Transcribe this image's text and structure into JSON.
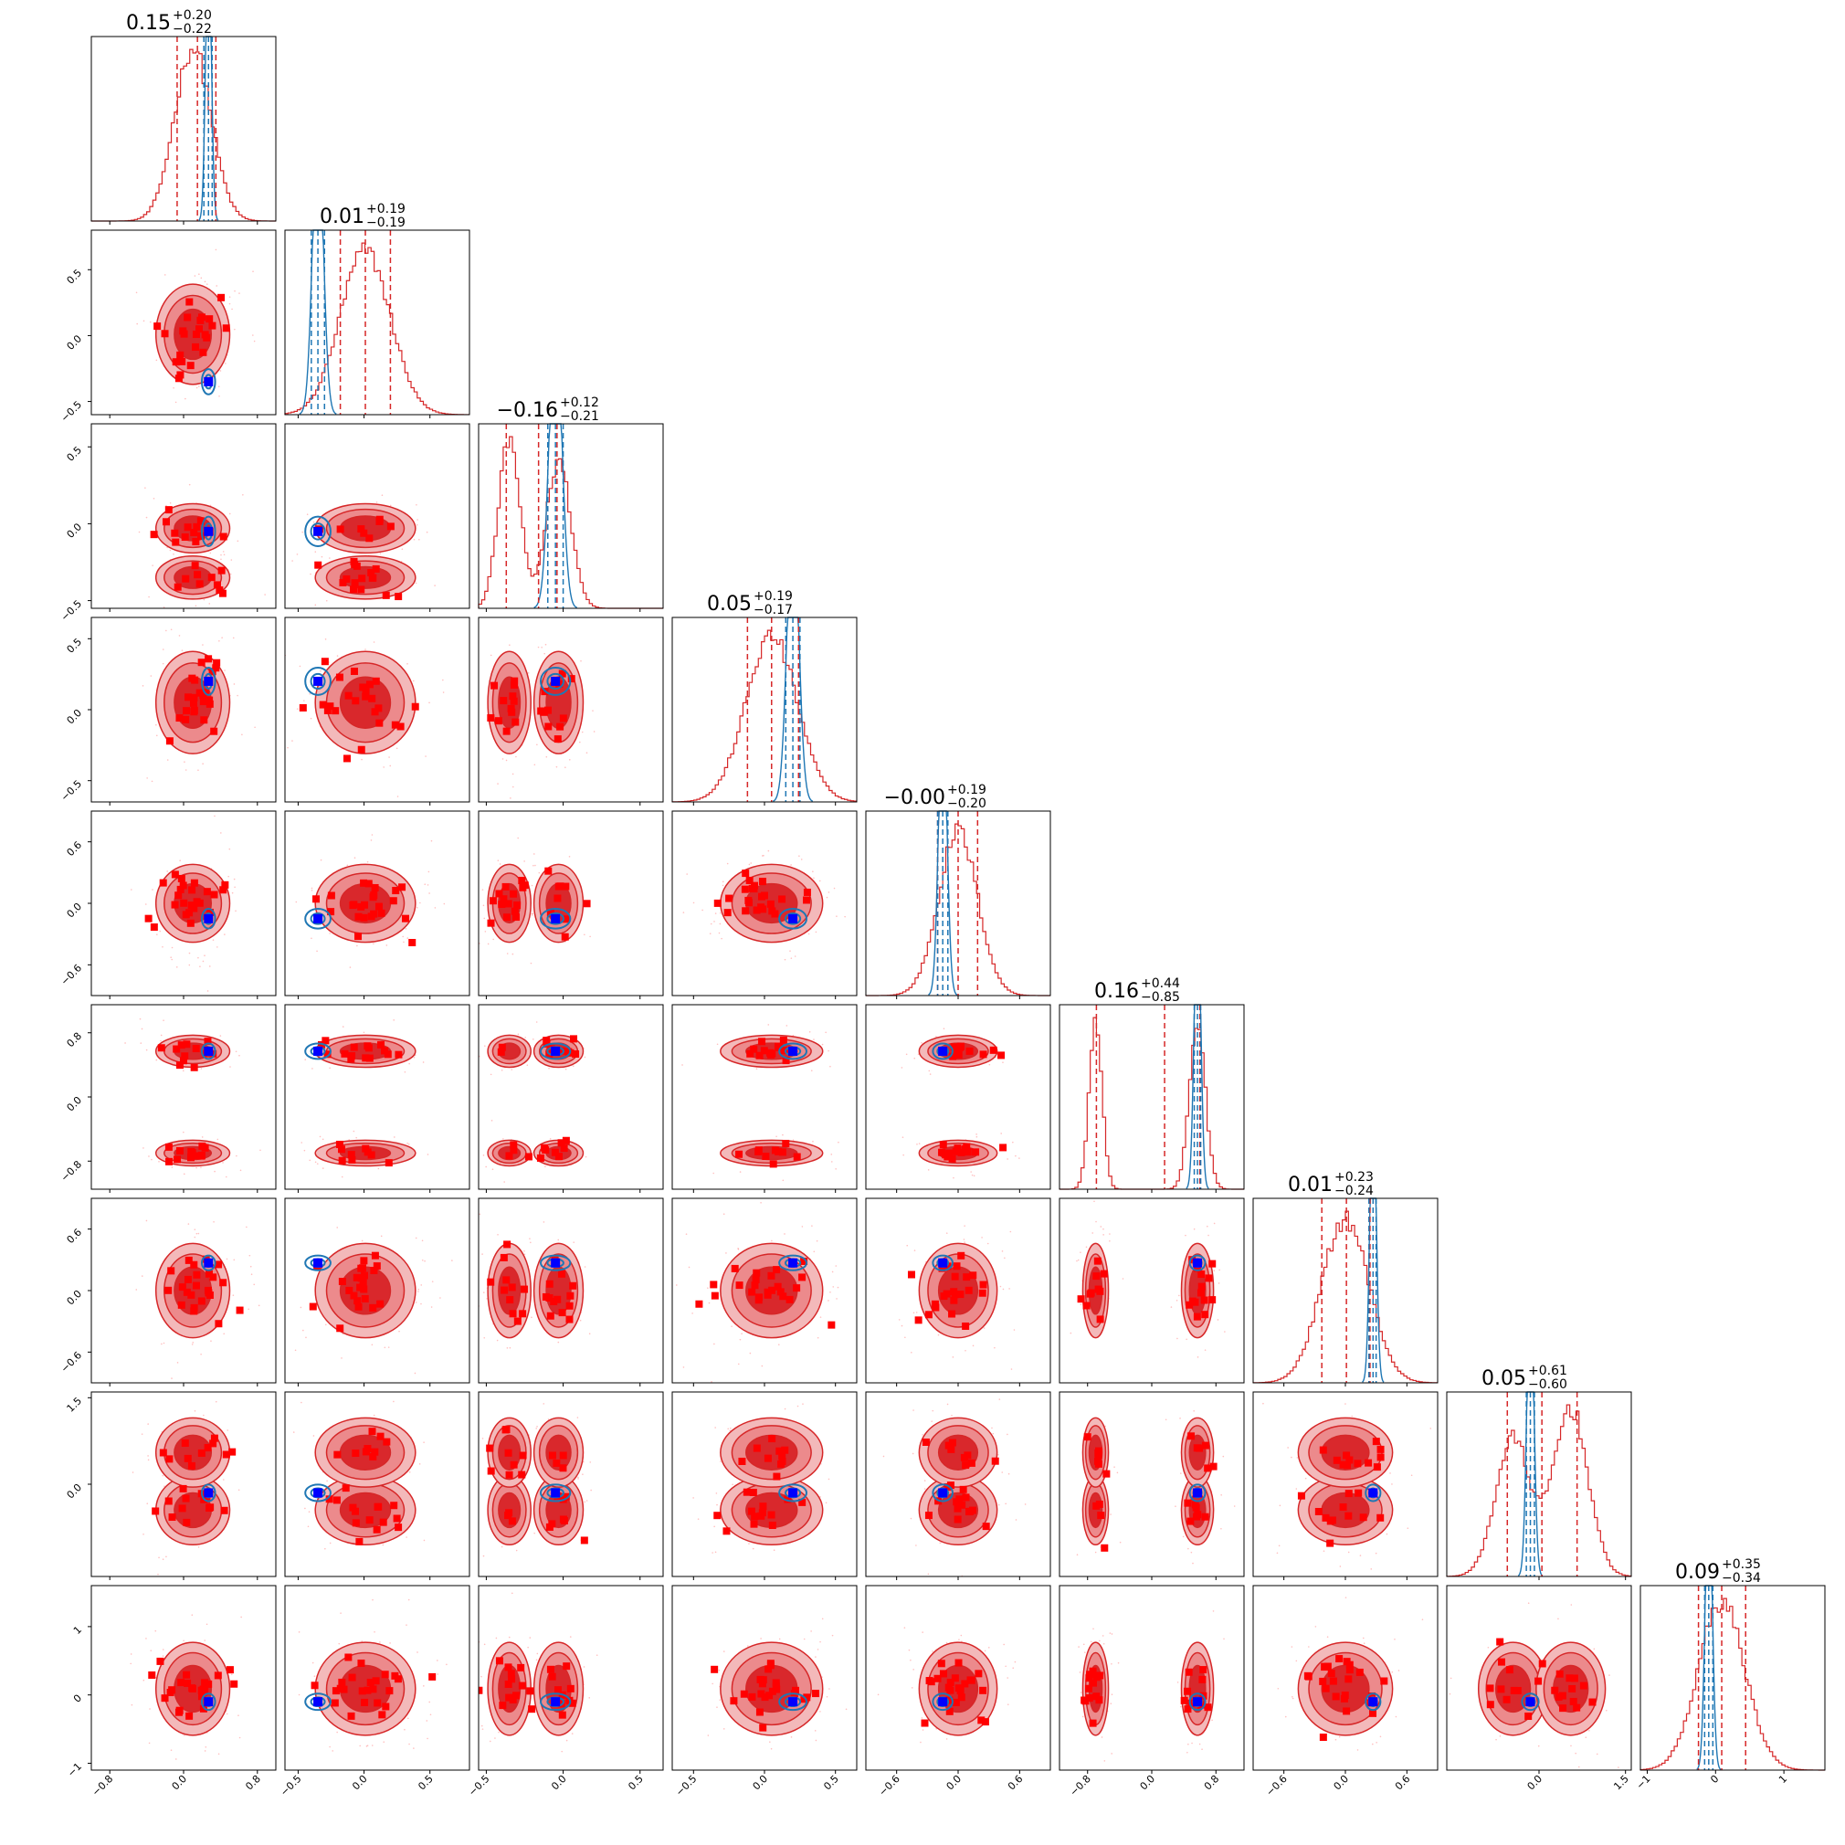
{
  "chart_data": {
    "type": "scatter",
    "subtype": "corner-plot",
    "num_parameters": 9,
    "colors": {
      "posterior_red": "#d62728",
      "contour_fill_inner": "#d9282c",
      "contour_fill_outer": "#f3b9ba",
      "sample_points": "#ff0000",
      "reference_blue": "#1f77b4",
      "truth_marker": "#0000ff"
    },
    "diagonal_titles": [
      {
        "value": "0.15",
        "plus": "+0.20",
        "minus": "−0.22"
      },
      {
        "value": "0.01",
        "plus": "+0.19",
        "minus": "−0.19"
      },
      {
        "value": "−0.16",
        "plus": "+0.12",
        "minus": "−0.21"
      },
      {
        "value": "0.05",
        "plus": "+0.19",
        "minus": "−0.17"
      },
      {
        "value": "−0.00",
        "plus": "+0.19",
        "minus": "−0.20"
      },
      {
        "value": "0.16",
        "plus": "+0.44",
        "minus": "−0.85"
      },
      {
        "value": "0.01",
        "plus": "+0.23",
        "minus": "−0.24"
      },
      {
        "value": "0.05",
        "plus": "+0.61",
        "minus": "−0.60"
      },
      {
        "value": "0.09",
        "plus": "+0.35",
        "minus": "−0.34"
      }
    ],
    "axes": [
      {
        "range": [
          -1.0,
          1.0
        ],
        "ticks": [
          -0.8,
          0.0,
          0.8
        ],
        "tick_labels": [
          "−0.8",
          "0.0",
          "0.8"
        ],
        "truth": 0.27
      },
      {
        "range": [
          -0.6,
          0.8
        ],
        "ticks": [
          -0.5,
          0.0,
          0.5
        ],
        "tick_labels": [
          "−0.5",
          "0.0",
          "0.5"
        ],
        "truth": -0.35
      },
      {
        "range": [
          -0.55,
          0.65
        ],
        "ticks": [
          -0.5,
          0.0,
          0.5
        ],
        "tick_labels": [
          "−0.5",
          "0.0",
          "0.5"
        ],
        "truth": -0.05
      },
      {
        "range": [
          -0.65,
          0.65
        ],
        "ticks": [
          -0.5,
          0.0,
          0.5
        ],
        "tick_labels": [
          "−0.5",
          "0.0",
          "0.5"
        ],
        "truth": 0.2
      },
      {
        "range": [
          -0.9,
          0.9
        ],
        "ticks": [
          -0.6,
          0.0,
          0.6
        ],
        "tick_labels": [
          "−0.6",
          "0.0",
          "0.6"
        ],
        "truth": -0.15
      },
      {
        "range": [
          -1.15,
          1.15
        ],
        "ticks": [
          -0.8,
          0.0,
          0.8
        ],
        "tick_labels": [
          "−0.8",
          "0.0",
          "0.8"
        ],
        "truth": 0.57
      },
      {
        "range": [
          -0.9,
          0.9
        ],
        "ticks": [
          -0.6,
          0.0,
          0.6
        ],
        "tick_labels": [
          "−0.6",
          "0.0",
          "0.6"
        ],
        "truth": 0.27
      },
      {
        "range": [
          -1.6,
          1.6
        ],
        "ticks": [
          0.0,
          1.5
        ],
        "tick_labels": [
          "0.0",
          "1.5"
        ],
        "y_ticks": [
          0.0,
          1.5
        ],
        "y_tick_labels": [
          "0.0",
          "1.5"
        ],
        "truth": -0.15
      },
      {
        "range": [
          -1.1,
          1.6
        ],
        "ticks": [
          -1.0,
          0.0,
          1.0
        ],
        "tick_labels": [
          "−1",
          "0",
          "1"
        ],
        "truth": -0.1
      }
    ],
    "marginal_1d": [
      {
        "red_modes": [
          {
            "mu": 0.1,
            "sd": 0.2,
            "w": 1
          }
        ],
        "blue": {
          "mu": 0.27,
          "sd": 0.03
        },
        "red_dashed": [
          -0.07,
          0.15,
          0.35
        ],
        "blue_dashed": [
          0.22,
          0.27,
          0.31
        ]
      },
      {
        "red_modes": [
          {
            "mu": 0.01,
            "sd": 0.19,
            "w": 1
          }
        ],
        "blue": {
          "mu": -0.35,
          "sd": 0.04
        },
        "red_dashed": [
          -0.18,
          0.01,
          0.2
        ],
        "blue_dashed": [
          -0.4,
          -0.35,
          -0.3
        ]
      },
      {
        "red_modes": [
          {
            "mu": -0.35,
            "sd": 0.07,
            "w": 0.5
          },
          {
            "mu": -0.03,
            "sd": 0.08,
            "w": 0.5
          }
        ],
        "blue": {
          "mu": -0.05,
          "sd": 0.04
        },
        "red_dashed": [
          -0.37,
          -0.16,
          -0.04
        ],
        "blue_dashed": [
          -0.1,
          -0.05,
          0.0
        ]
      },
      {
        "red_modes": [
          {
            "mu": 0.05,
            "sd": 0.18,
            "w": 1
          }
        ],
        "blue": {
          "mu": 0.2,
          "sd": 0.04
        },
        "red_dashed": [
          -0.12,
          0.05,
          0.24
        ],
        "blue_dashed": [
          0.15,
          0.2,
          0.25
        ]
      },
      {
        "red_modes": [
          {
            "mu": 0.0,
            "sd": 0.19,
            "w": 1
          }
        ],
        "blue": {
          "mu": -0.15,
          "sd": 0.04
        },
        "red_dashed": [
          -0.2,
          0.0,
          0.19
        ],
        "blue_dashed": [
          -0.2,
          -0.15,
          -0.1
        ]
      },
      {
        "red_modes": [
          {
            "mu": -0.7,
            "sd": 0.08,
            "w": 0.45
          },
          {
            "mu": 0.57,
            "sd": 0.1,
            "w": 0.55
          }
        ],
        "blue": {
          "mu": 0.57,
          "sd": 0.04
        },
        "red_dashed": [
          -0.69,
          0.16,
          0.6
        ],
        "blue_dashed": [
          0.53,
          0.57,
          0.61
        ]
      },
      {
        "red_modes": [
          {
            "mu": 0.0,
            "sd": 0.23,
            "w": 1
          }
        ],
        "blue": {
          "mu": 0.27,
          "sd": 0.03
        },
        "red_dashed": [
          -0.23,
          0.01,
          0.24
        ],
        "blue_dashed": [
          0.23,
          0.27,
          0.3
        ]
      },
      {
        "red_modes": [
          {
            "mu": -0.45,
            "sd": 0.3,
            "w": 0.45
          },
          {
            "mu": 0.55,
            "sd": 0.3,
            "w": 0.55
          }
        ],
        "blue": {
          "mu": -0.15,
          "sd": 0.06
        },
        "red_dashed": [
          -0.55,
          0.05,
          0.66
        ],
        "blue_dashed": [
          -0.22,
          -0.15,
          -0.08
        ]
      },
      {
        "red_modes": [
          {
            "mu": 0.09,
            "sd": 0.34,
            "w": 1
          }
        ],
        "blue": {
          "mu": -0.1,
          "sd": 0.05
        },
        "red_dashed": [
          -0.25,
          0.09,
          0.44
        ],
        "blue_dashed": [
          -0.16,
          -0.1,
          -0.04
        ]
      }
    ]
  }
}
